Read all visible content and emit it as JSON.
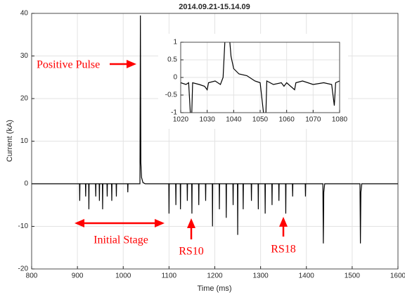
{
  "chart_data": [
    {
      "type": "line",
      "title": "2014.09.21-15.14.09",
      "xlabel": "Time (ms)",
      "ylabel": "Current (kA)",
      "color": "#000000",
      "grid": true,
      "annotations": [
        "Positive Pulse",
        "Initial Stage",
        "RS10",
        "RS18"
      ],
      "xlim": [
        800,
        1600
      ],
      "ylim": [
        -20,
        40
      ],
      "xticks": [
        800,
        900,
        1000,
        1100,
        1200,
        1300,
        1400,
        1500,
        1600
      ],
      "yticks": [
        -20,
        -10,
        0,
        10,
        20,
        30,
        40
      ],
      "x": [
        800,
        904.5,
        905,
        905.5,
        917.5,
        918,
        918.5,
        924.5,
        925,
        925.5,
        939.5,
        940,
        940.5,
        947.5,
        948,
        948.5,
        954.5,
        955,
        955.5,
        964.5,
        965,
        965.5,
        974.5,
        975,
        975.5,
        984.5,
        985,
        985.5,
        1009.5,
        1010,
        1010.5,
        1036.5,
        1037.5,
        1038.5,
        1040,
        1043,
        1048,
        1099.5,
        1100,
        1100.5,
        1114.5,
        1115,
        1115.5,
        1124.5,
        1125,
        1125.5,
        1139.5,
        1140,
        1140.5,
        1149.5,
        1150,
        1150.5,
        1164.5,
        1165,
        1165.5,
        1179.5,
        1180,
        1180.5,
        1194.5,
        1195,
        1195.5,
        1209.5,
        1210,
        1210.5,
        1224.5,
        1225,
        1225.5,
        1239.5,
        1240,
        1240.5,
        1249.5,
        1250,
        1250.5,
        1261.5,
        1262,
        1262.5,
        1279.5,
        1280,
        1280.5,
        1294.5,
        1295,
        1295.5,
        1309.5,
        1310,
        1310.5,
        1324.5,
        1325,
        1325.5,
        1339.5,
        1340,
        1340.5,
        1354.5,
        1355,
        1355.5,
        1369.5,
        1370,
        1370.5,
        1397.5,
        1398,
        1398.5,
        1436,
        1437,
        1438,
        1440,
        1517,
        1518,
        1519,
        1521,
        1600
      ],
      "values": [
        0,
        0,
        -4,
        0,
        0,
        -3,
        0,
        0,
        -6,
        0,
        0,
        -3,
        0,
        0,
        -4,
        0,
        0,
        -6,
        0,
        0,
        -3,
        0,
        0,
        -4,
        0,
        0,
        -3,
        0,
        0,
        -2,
        0,
        0,
        39.5,
        5,
        1.5,
        0.3,
        0,
        0,
        -7,
        0,
        0,
        -5,
        0,
        0,
        -6,
        0,
        0,
        -4,
        0,
        0,
        -7,
        0,
        0,
        -5,
        0,
        0,
        -4,
        0,
        0,
        -10,
        0,
        0,
        -6,
        0,
        0,
        -8,
        0,
        0,
        -5,
        0,
        0,
        -12,
        0,
        0,
        -6,
        0,
        0,
        -4,
        0,
        0,
        -6,
        0,
        0,
        -7,
        0,
        0,
        -5,
        0,
        0,
        -4,
        0,
        0,
        -7,
        0,
        0,
        -3,
        0,
        0,
        -3,
        0,
        0,
        -14,
        -2,
        0,
        0,
        -14,
        -2,
        0,
        0
      ]
    },
    {
      "type": "line",
      "color": "#000000",
      "grid": true,
      "xlim": [
        1020,
        1080
      ],
      "ylim": [
        -1,
        1
      ],
      "xticks": [
        1020,
        1030,
        1040,
        1050,
        1060,
        1070,
        1080
      ],
      "yticks": [
        -1,
        -0.5,
        0,
        0.5,
        1
      ],
      "x": [
        1020,
        1022,
        1023,
        1024,
        1024.5,
        1027,
        1029,
        1030,
        1030.5,
        1033,
        1035,
        1036,
        1037,
        1038,
        1039,
        1040,
        1042,
        1045,
        1048,
        1050,
        1052,
        1052.5,
        1055,
        1058,
        1059,
        1060,
        1063,
        1063.5,
        1066,
        1070,
        1074,
        1077,
        1078,
        1078.5,
        1080
      ],
      "values": [
        -0.15,
        -0.2,
        -0.15,
        -1.5,
        -0.15,
        -0.2,
        -0.25,
        -0.35,
        -0.15,
        -0.1,
        -0.2,
        0,
        1.5,
        1.5,
        0.6,
        0.25,
        0.1,
        0.05,
        -0.1,
        -0.15,
        -1.5,
        -0.1,
        -0.2,
        -0.15,
        -0.25,
        -0.15,
        -0.35,
        -0.15,
        -0.1,
        -0.2,
        -0.15,
        -0.2,
        -0.8,
        -0.15,
        -0.1
      ]
    }
  ]
}
